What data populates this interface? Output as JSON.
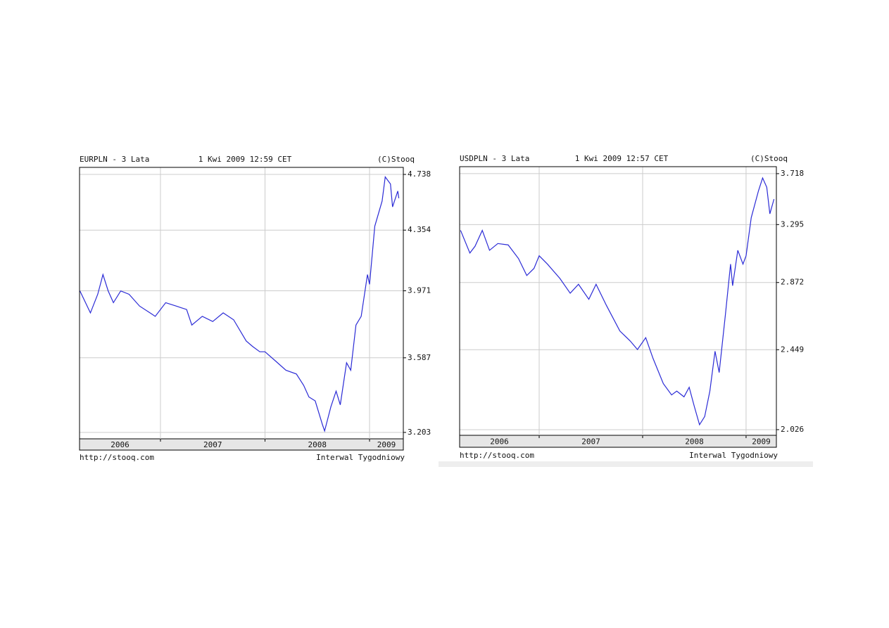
{
  "chart_data": [
    {
      "type": "line",
      "title": "EURPLN - 3 Lata",
      "timestamp": "1 Kwi 2009 12:59 CET",
      "source": "(C)Stooq",
      "url": "http://stooq.com",
      "interval": "Interwal Tygodniowy",
      "x": [
        2006.23,
        2006.33,
        2006.4,
        2006.45,
        2006.5,
        2006.55,
        2006.62,
        2006.7,
        2006.8,
        2006.9,
        2006.95,
        2007.05,
        2007.15,
        2007.25,
        2007.3,
        2007.4,
        2007.5,
        2007.6,
        2007.7,
        2007.82,
        2007.88,
        2007.95,
        2008.0,
        2008.1,
        2008.2,
        2008.3,
        2008.37,
        2008.42,
        2008.48,
        2008.55,
        2008.57,
        2008.63,
        2008.68,
        2008.72,
        2008.78,
        2008.82,
        2008.87,
        2008.92,
        2008.98,
        2009.0,
        2009.05,
        2009.12,
        2009.15,
        2009.2,
        2009.22,
        2009.27,
        2009.28
      ],
      "series": [
        {
          "color": "#2b2bd6",
          "values": [
            3.97,
            3.84,
            3.95,
            4.07,
            3.97,
            3.9,
            3.97,
            3.95,
            3.88,
            3.84,
            3.82,
            3.9,
            3.88,
            3.86,
            3.77,
            3.82,
            3.79,
            3.84,
            3.8,
            3.68,
            3.65,
            3.62,
            3.62,
            3.57,
            3.52,
            3.5,
            3.44,
            3.38,
            3.36,
            3.24,
            3.21,
            3.33,
            3.41,
            3.34,
            3.56,
            3.52,
            3.77,
            3.82,
            4.07,
            4.01,
            4.38,
            4.55,
            4.72,
            4.67,
            4.51,
            4.62,
            4.57
          ]
        }
      ],
      "xlim": [
        2006.226,
        2009.323
      ],
      "xticks": [
        2007,
        2008,
        2009
      ],
      "year_labels": [
        "2006",
        "2007",
        "2008",
        "2009"
      ],
      "ylim": [
        3.172,
        4.789
      ],
      "yticks": [
        3.203,
        3.587,
        3.971,
        4.354,
        4.738
      ],
      "log_scale": true,
      "grid": true
    },
    {
      "type": "line",
      "title": "USDPLN - 3 Lata",
      "timestamp": "1 Kwi 2009 12:57 CET",
      "source": "(C)Stooq",
      "url": "http://stooq.com",
      "interval": "Interwal Tygodniowy",
      "x": [
        2006.24,
        2006.33,
        2006.38,
        2006.45,
        2006.52,
        2006.6,
        2006.7,
        2006.8,
        2006.88,
        2006.95,
        2007.0,
        2007.08,
        2007.2,
        2007.3,
        2007.38,
        2007.48,
        2007.55,
        2007.65,
        2007.78,
        2007.88,
        2007.95,
        2008.03,
        2008.1,
        2008.2,
        2008.28,
        2008.33,
        2008.4,
        2008.45,
        2008.5,
        2008.55,
        2008.6,
        2008.65,
        2008.7,
        2008.74,
        2008.8,
        2008.85,
        2008.87,
        2008.92,
        2008.97,
        2009.0,
        2009.05,
        2009.12,
        2009.16,
        2009.2,
        2009.23,
        2009.27
      ],
      "series": [
        {
          "color": "#2b2bd6",
          "values": [
            3.25,
            3.08,
            3.13,
            3.25,
            3.1,
            3.15,
            3.14,
            3.04,
            2.92,
            2.97,
            3.06,
            3.0,
            2.9,
            2.8,
            2.86,
            2.76,
            2.86,
            2.72,
            2.56,
            2.5,
            2.45,
            2.52,
            2.4,
            2.26,
            2.2,
            2.22,
            2.19,
            2.24,
            2.14,
            2.05,
            2.09,
            2.22,
            2.44,
            2.32,
            2.66,
            3.0,
            2.85,
            3.1,
            3.0,
            3.06,
            3.35,
            3.57,
            3.68,
            3.6,
            3.38,
            3.5
          ]
        }
      ],
      "xlim": [
        2006.231,
        2009.293
      ],
      "xticks": [
        2007,
        2008,
        2009
      ],
      "year_labels": [
        "2006",
        "2007",
        "2008",
        "2009"
      ],
      "ylim": [
        1.999,
        3.78
      ],
      "yticks": [
        2.026,
        2.449,
        2.872,
        3.295,
        3.718
      ],
      "log_scale": true,
      "grid": true
    }
  ]
}
